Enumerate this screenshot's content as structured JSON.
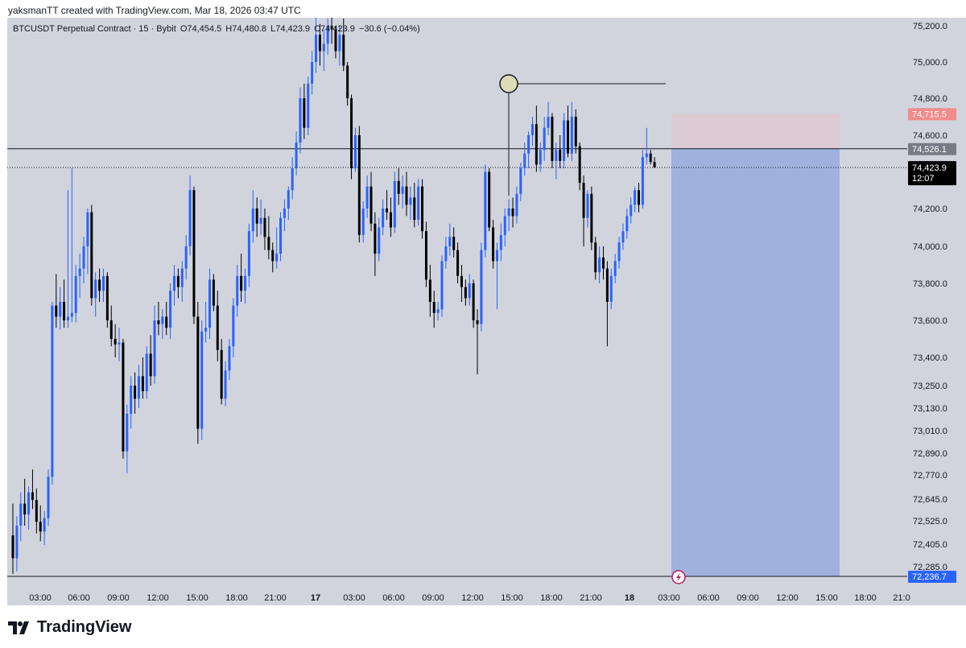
{
  "header": {
    "created_by": "yaksmanTT created with TradingView.com, Mar 18, 2026 03:47 UTC"
  },
  "symbol": {
    "name": "BTCUSDT Perpetual Contract · 15 · Bybit",
    "open": "O74,454.5",
    "high": "H74,480.8",
    "low": "L74,423.9",
    "close": "C74,423.9",
    "change": "−30.6 (−0.04%)"
  },
  "brand": {
    "name": "TradingView"
  },
  "colors": {
    "bull": "#2962ff",
    "bear": "#000000",
    "tp_zone": "#9fb1dd",
    "sl_zone": "#ddcbd4",
    "plot_bg": "#d1d4dc"
  },
  "chart_data": {
    "type": "candlestick",
    "title": "BTCUSDT Perpetual Contract · 15 · Bybit",
    "y_ticks": [
      "75,200.0",
      "75,000.0",
      "74,800.0",
      "74,600.0",
      "74,200.0",
      "74,000.0",
      "73,800.0",
      "73,600.0",
      "73,400.0",
      "73,250.0",
      "73,130.0",
      "73,010.0",
      "72,890.0",
      "72,770.0",
      "72,645.0",
      "72,525.0",
      "72,405.0",
      "72,285.0"
    ],
    "x_ticks": [
      "03:00",
      "06:00",
      "09:00",
      "12:00",
      "15:00",
      "18:00",
      "21:00",
      "17",
      "03:00",
      "06:00",
      "09:00",
      "12:00",
      "15:00",
      "18:00",
      "21:00",
      "18",
      "03:00",
      "06:00",
      "09:00",
      "12:00",
      "15:00",
      "18:00",
      "21:0"
    ],
    "price_labels": {
      "stop_loss": "74,715.5",
      "entry": "74,526.1",
      "last": "74,423.9",
      "countdown": "12:07",
      "target": "72,236.7"
    },
    "short_position": {
      "entry": 74526.1,
      "stop": 74715.5,
      "target": 72236.7,
      "start_time": "Mar 18 03:00",
      "end_time": "Mar 18 15:30"
    },
    "horizontal_level": 74526.1,
    "marker_price": 74880,
    "candles": [
      {
        "o": 72450,
        "h": 72620,
        "l": 72250,
        "c": 72330
      },
      {
        "o": 72330,
        "h": 72550,
        "l": 72260,
        "c": 72500
      },
      {
        "o": 72500,
        "h": 72680,
        "l": 72420,
        "c": 72620
      },
      {
        "o": 72620,
        "h": 72750,
        "l": 72500,
        "c": 72560
      },
      {
        "o": 72560,
        "h": 72710,
        "l": 72480,
        "c": 72680
      },
      {
        "o": 72680,
        "h": 72800,
        "l": 72590,
        "c": 72640
      },
      {
        "o": 72640,
        "h": 72700,
        "l": 72460,
        "c": 72520
      },
      {
        "o": 72520,
        "h": 72610,
        "l": 72420,
        "c": 72470
      },
      {
        "o": 72470,
        "h": 72580,
        "l": 72400,
        "c": 72540
      },
      {
        "o": 72540,
        "h": 72800,
        "l": 72500,
        "c": 72760
      },
      {
        "o": 72760,
        "h": 73700,
        "l": 72720,
        "c": 73680
      },
      {
        "o": 73680,
        "h": 73850,
        "l": 73560,
        "c": 73620
      },
      {
        "o": 73620,
        "h": 73780,
        "l": 73550,
        "c": 73700
      },
      {
        "o": 73700,
        "h": 73820,
        "l": 73560,
        "c": 73600
      },
      {
        "o": 73600,
        "h": 74300,
        "l": 73560,
        "c": 73620
      },
      {
        "o": 73620,
        "h": 74420,
        "l": 73590,
        "c": 73640
      },
      {
        "o": 73640,
        "h": 73900,
        "l": 73590,
        "c": 73840
      },
      {
        "o": 73840,
        "h": 73960,
        "l": 73720,
        "c": 73880
      },
      {
        "o": 73880,
        "h": 74050,
        "l": 73800,
        "c": 74000
      },
      {
        "o": 74000,
        "h": 74200,
        "l": 73850,
        "c": 74180
      },
      {
        "o": 74180,
        "h": 74220,
        "l": 73680,
        "c": 73720
      },
      {
        "o": 73720,
        "h": 73860,
        "l": 73620,
        "c": 73820
      },
      {
        "o": 73820,
        "h": 73880,
        "l": 73700,
        "c": 73760
      },
      {
        "o": 73760,
        "h": 73880,
        "l": 73700,
        "c": 73840
      },
      {
        "o": 73840,
        "h": 73860,
        "l": 73560,
        "c": 73600
      },
      {
        "o": 73600,
        "h": 73680,
        "l": 73460,
        "c": 73500
      },
      {
        "o": 73500,
        "h": 73580,
        "l": 73400,
        "c": 73470
      },
      {
        "o": 73470,
        "h": 73560,
        "l": 73380,
        "c": 73480
      },
      {
        "o": 73480,
        "h": 73500,
        "l": 72860,
        "c": 72900
      },
      {
        "o": 72900,
        "h": 73150,
        "l": 72780,
        "c": 73100
      },
      {
        "o": 73100,
        "h": 73300,
        "l": 73020,
        "c": 73250
      },
      {
        "o": 73250,
        "h": 73320,
        "l": 73100,
        "c": 73180
      },
      {
        "o": 73180,
        "h": 73360,
        "l": 73130,
        "c": 73300
      },
      {
        "o": 73300,
        "h": 73400,
        "l": 73180,
        "c": 73220
      },
      {
        "o": 73220,
        "h": 73460,
        "l": 73180,
        "c": 73420
      },
      {
        "o": 73420,
        "h": 73520,
        "l": 73250,
        "c": 73300
      },
      {
        "o": 73300,
        "h": 73680,
        "l": 73260,
        "c": 73600
      },
      {
        "o": 73600,
        "h": 73700,
        "l": 73520,
        "c": 73580
      },
      {
        "o": 73580,
        "h": 73660,
        "l": 73500,
        "c": 73620
      },
      {
        "o": 73620,
        "h": 73700,
        "l": 73520,
        "c": 73560
      },
      {
        "o": 73560,
        "h": 73800,
        "l": 73500,
        "c": 73760
      },
      {
        "o": 73760,
        "h": 73900,
        "l": 73680,
        "c": 73840
      },
      {
        "o": 73840,
        "h": 73880,
        "l": 73720,
        "c": 73780
      },
      {
        "o": 73780,
        "h": 73920,
        "l": 73700,
        "c": 73880
      },
      {
        "o": 73880,
        "h": 74060,
        "l": 73820,
        "c": 74000
      },
      {
        "o": 74000,
        "h": 74380,
        "l": 73950,
        "c": 74300
      },
      {
        "o": 74300,
        "h": 74320,
        "l": 73580,
        "c": 73620
      },
      {
        "o": 73620,
        "h": 73700,
        "l": 72940,
        "c": 73020
      },
      {
        "o": 73020,
        "h": 73600,
        "l": 72960,
        "c": 73540
      },
      {
        "o": 73540,
        "h": 73700,
        "l": 73480,
        "c": 73560
      },
      {
        "o": 73560,
        "h": 73880,
        "l": 73500,
        "c": 73820
      },
      {
        "o": 73820,
        "h": 73850,
        "l": 73650,
        "c": 73680
      },
      {
        "o": 73680,
        "h": 73760,
        "l": 73380,
        "c": 73440
      },
      {
        "o": 73440,
        "h": 73500,
        "l": 73150,
        "c": 73180
      },
      {
        "o": 73180,
        "h": 73380,
        "l": 73140,
        "c": 73330
      },
      {
        "o": 73330,
        "h": 73500,
        "l": 73280,
        "c": 73460
      },
      {
        "o": 73460,
        "h": 73720,
        "l": 73400,
        "c": 73680
      },
      {
        "o": 73680,
        "h": 73900,
        "l": 73620,
        "c": 73840
      },
      {
        "o": 73840,
        "h": 73960,
        "l": 73700,
        "c": 73760
      },
      {
        "o": 73760,
        "h": 73880,
        "l": 73690,
        "c": 73840
      },
      {
        "o": 73840,
        "h": 74120,
        "l": 73780,
        "c": 74080
      },
      {
        "o": 74080,
        "h": 74300,
        "l": 74020,
        "c": 74200
      },
      {
        "o": 74200,
        "h": 74260,
        "l": 74050,
        "c": 74120
      },
      {
        "o": 74120,
        "h": 74250,
        "l": 74060,
        "c": 74150
      },
      {
        "o": 74150,
        "h": 74200,
        "l": 73980,
        "c": 74050
      },
      {
        "o": 74050,
        "h": 74160,
        "l": 73930,
        "c": 73980
      },
      {
        "o": 73980,
        "h": 74020,
        "l": 73860,
        "c": 73920
      },
      {
        "o": 73920,
        "h": 74100,
        "l": 73880,
        "c": 73960
      },
      {
        "o": 73960,
        "h": 74180,
        "l": 73920,
        "c": 74150
      },
      {
        "o": 74150,
        "h": 74250,
        "l": 74080,
        "c": 74200
      },
      {
        "o": 74200,
        "h": 74320,
        "l": 74140,
        "c": 74300
      },
      {
        "o": 74300,
        "h": 74480,
        "l": 74250,
        "c": 74420
      },
      {
        "o": 74420,
        "h": 74620,
        "l": 74380,
        "c": 74560
      },
      {
        "o": 74560,
        "h": 74860,
        "l": 74500,
        "c": 74800
      },
      {
        "o": 74800,
        "h": 74880,
        "l": 74580,
        "c": 74640
      },
      {
        "o": 74640,
        "h": 74920,
        "l": 74600,
        "c": 74880
      },
      {
        "o": 74880,
        "h": 75060,
        "l": 74820,
        "c": 75000
      },
      {
        "o": 75000,
        "h": 75250,
        "l": 74940,
        "c": 75150
      },
      {
        "o": 75150,
        "h": 75210,
        "l": 74980,
        "c": 75060
      },
      {
        "o": 75060,
        "h": 75180,
        "l": 74950,
        "c": 75100
      },
      {
        "o": 75100,
        "h": 75240,
        "l": 75040,
        "c": 75200
      },
      {
        "o": 75200,
        "h": 75250,
        "l": 75100,
        "c": 75180
      },
      {
        "o": 75180,
        "h": 75200,
        "l": 75020,
        "c": 75060
      },
      {
        "o": 75060,
        "h": 75200,
        "l": 74980,
        "c": 75150
      },
      {
        "o": 75150,
        "h": 75240,
        "l": 74950,
        "c": 74980
      },
      {
        "o": 74980,
        "h": 75000,
        "l": 74760,
        "c": 74800
      },
      {
        "o": 74800,
        "h": 74820,
        "l": 74360,
        "c": 74420
      },
      {
        "o": 74420,
        "h": 74640,
        "l": 74400,
        "c": 74600
      },
      {
        "o": 74600,
        "h": 74650,
        "l": 74020,
        "c": 74060
      },
      {
        "o": 74060,
        "h": 74240,
        "l": 74020,
        "c": 74200
      },
      {
        "o": 74200,
        "h": 74380,
        "l": 74150,
        "c": 74320
      },
      {
        "o": 74320,
        "h": 74400,
        "l": 74080,
        "c": 74120
      },
      {
        "o": 74120,
        "h": 74180,
        "l": 73840,
        "c": 73960
      },
      {
        "o": 73960,
        "h": 74150,
        "l": 73920,
        "c": 74100
      },
      {
        "o": 74100,
        "h": 74250,
        "l": 74060,
        "c": 74200
      },
      {
        "o": 74200,
        "h": 74300,
        "l": 74140,
        "c": 74180
      },
      {
        "o": 74180,
        "h": 74260,
        "l": 74050,
        "c": 74100
      },
      {
        "o": 74100,
        "h": 74400,
        "l": 74070,
        "c": 74350
      },
      {
        "o": 74350,
        "h": 74420,
        "l": 74220,
        "c": 74280
      },
      {
        "o": 74280,
        "h": 74380,
        "l": 74200,
        "c": 74320
      },
      {
        "o": 74320,
        "h": 74400,
        "l": 74160,
        "c": 74220
      },
      {
        "o": 74220,
        "h": 74320,
        "l": 74140,
        "c": 74260
      },
      {
        "o": 74260,
        "h": 74340,
        "l": 74100,
        "c": 74140
      },
      {
        "o": 74140,
        "h": 74360,
        "l": 74110,
        "c": 74320
      },
      {
        "o": 74320,
        "h": 74360,
        "l": 74040,
        "c": 74080
      },
      {
        "o": 74080,
        "h": 74130,
        "l": 73780,
        "c": 73820
      },
      {
        "o": 73820,
        "h": 73900,
        "l": 73620,
        "c": 73700
      },
      {
        "o": 73700,
        "h": 73760,
        "l": 73560,
        "c": 73640
      },
      {
        "o": 73640,
        "h": 73700,
        "l": 73600,
        "c": 73660
      },
      {
        "o": 73660,
        "h": 73950,
        "l": 73620,
        "c": 73920
      },
      {
        "o": 73920,
        "h": 74050,
        "l": 73880,
        "c": 74000
      },
      {
        "o": 74000,
        "h": 74120,
        "l": 73950,
        "c": 74050
      },
      {
        "o": 74050,
        "h": 74100,
        "l": 73940,
        "c": 73980
      },
      {
        "o": 73980,
        "h": 74020,
        "l": 73800,
        "c": 73840
      },
      {
        "o": 73840,
        "h": 73900,
        "l": 73700,
        "c": 73780
      },
      {
        "o": 73780,
        "h": 73820,
        "l": 73680,
        "c": 73720
      },
      {
        "o": 73720,
        "h": 73850,
        "l": 73680,
        "c": 73800
      },
      {
        "o": 73800,
        "h": 73820,
        "l": 73560,
        "c": 73600
      },
      {
        "o": 73600,
        "h": 73660,
        "l": 73310,
        "c": 73580
      },
      {
        "o": 73580,
        "h": 74020,
        "l": 73540,
        "c": 73980
      },
      {
        "o": 73980,
        "h": 74440,
        "l": 73940,
        "c": 74400
      },
      {
        "o": 74400,
        "h": 74420,
        "l": 74080,
        "c": 74100
      },
      {
        "o": 74100,
        "h": 74140,
        "l": 73880,
        "c": 73920
      },
      {
        "o": 73920,
        "h": 74020,
        "l": 73660,
        "c": 73980
      },
      {
        "o": 73980,
        "h": 74120,
        "l": 73920,
        "c": 74060
      },
      {
        "o": 74060,
        "h": 74200,
        "l": 74000,
        "c": 74160
      },
      {
        "o": 74160,
        "h": 74250,
        "l": 74080,
        "c": 74200
      },
      {
        "o": 74200,
        "h": 74260,
        "l": 74100,
        "c": 74160
      },
      {
        "o": 74160,
        "h": 74320,
        "l": 74120,
        "c": 74280
      },
      {
        "o": 74280,
        "h": 74450,
        "l": 74240,
        "c": 74420
      },
      {
        "o": 74420,
        "h": 74560,
        "l": 74380,
        "c": 74500
      },
      {
        "o": 74500,
        "h": 74620,
        "l": 74420,
        "c": 74600
      },
      {
        "o": 74600,
        "h": 74700,
        "l": 74540,
        "c": 74660
      },
      {
        "o": 74660,
        "h": 74760,
        "l": 74400,
        "c": 74440
      },
      {
        "o": 74440,
        "h": 74560,
        "l": 74400,
        "c": 74520
      },
      {
        "o": 74520,
        "h": 74700,
        "l": 74460,
        "c": 74640
      },
      {
        "o": 74640,
        "h": 74780,
        "l": 74600,
        "c": 74700
      },
      {
        "o": 74700,
        "h": 74720,
        "l": 74420,
        "c": 74460
      },
      {
        "o": 74460,
        "h": 74560,
        "l": 74360,
        "c": 74520
      },
      {
        "o": 74520,
        "h": 74600,
        "l": 74420,
        "c": 74460
      },
      {
        "o": 74460,
        "h": 74720,
        "l": 74420,
        "c": 74680
      },
      {
        "o": 74680,
        "h": 74760,
        "l": 74480,
        "c": 74500
      },
      {
        "o": 74500,
        "h": 74780,
        "l": 74460,
        "c": 74700
      },
      {
        "o": 74700,
        "h": 74740,
        "l": 74500,
        "c": 74540
      },
      {
        "o": 74540,
        "h": 74560,
        "l": 74300,
        "c": 74340
      },
      {
        "o": 74340,
        "h": 74380,
        "l": 74000,
        "c": 74150
      },
      {
        "o": 74150,
        "h": 74300,
        "l": 74100,
        "c": 74280
      },
      {
        "o": 74280,
        "h": 74320,
        "l": 73980,
        "c": 74020
      },
      {
        "o": 74020,
        "h": 74050,
        "l": 73820,
        "c": 73860
      },
      {
        "o": 73860,
        "h": 74000,
        "l": 73800,
        "c": 73940
      },
      {
        "o": 73940,
        "h": 74000,
        "l": 73820,
        "c": 73880
      },
      {
        "o": 73880,
        "h": 73920,
        "l": 73460,
        "c": 73700
      },
      {
        "o": 73700,
        "h": 73880,
        "l": 73660,
        "c": 73840
      },
      {
        "o": 73840,
        "h": 73960,
        "l": 73800,
        "c": 73920
      },
      {
        "o": 73920,
        "h": 74050,
        "l": 73880,
        "c": 74020
      },
      {
        "o": 74020,
        "h": 74120,
        "l": 73980,
        "c": 74080
      },
      {
        "o": 74080,
        "h": 74200,
        "l": 74040,
        "c": 74160
      },
      {
        "o": 74160,
        "h": 74260,
        "l": 74120,
        "c": 74220
      },
      {
        "o": 74220,
        "h": 74320,
        "l": 74180,
        "c": 74300
      },
      {
        "o": 74300,
        "h": 74340,
        "l": 74180,
        "c": 74220
      },
      {
        "o": 74220,
        "h": 74520,
        "l": 74200,
        "c": 74480
      },
      {
        "o": 74480,
        "h": 74640,
        "l": 74440,
        "c": 74500
      },
      {
        "o": 74500,
        "h": 74520,
        "l": 74440,
        "c": 74454
      },
      {
        "o": 74454,
        "h": 74481,
        "l": 74424,
        "c": 74424
      }
    ]
  }
}
